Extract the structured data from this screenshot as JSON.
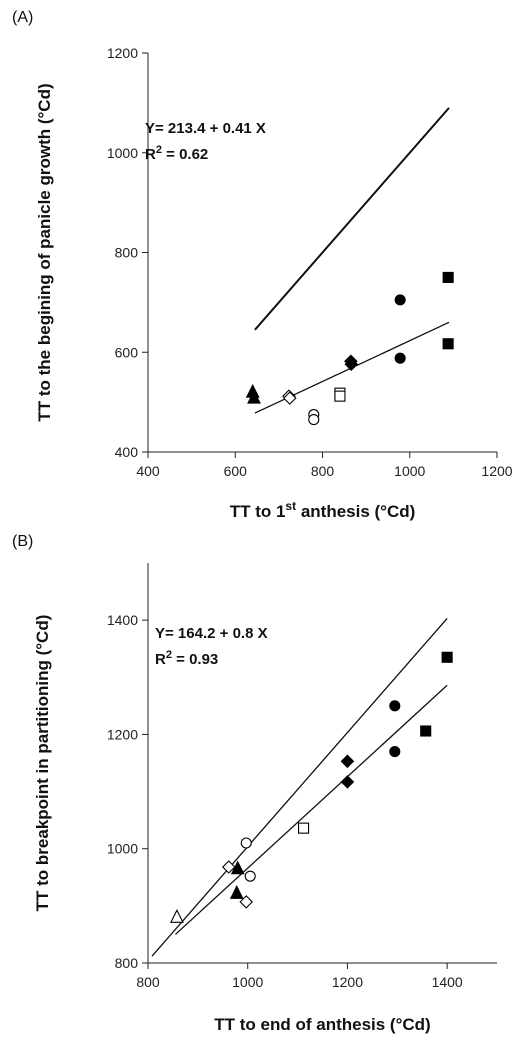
{
  "chart_data": [
    {
      "type": "scatter",
      "panel_label": "(A)",
      "xlabel": "TT to  1st anthesis (°Cd)",
      "xlabel_parts": {
        "pre": "TT to  1",
        "sup": "st",
        "post": " anthesis (°Cd)"
      },
      "ylabel": "TT to the begining of panicle growth (°Cd)",
      "xlim": [
        400,
        1200
      ],
      "ylim": [
        400,
        1200
      ],
      "xticks": [
        400,
        600,
        800,
        1000,
        1200
      ],
      "yticks": [
        400,
        600,
        800,
        1000,
        1200
      ],
      "grid": false,
      "equation": {
        "line1": "Y= 213.4 + 0.41 X",
        "line2_main": "R",
        "line2_sup": "2",
        "line2_rest": " = 0.62"
      },
      "lines": [
        {
          "style": "thick",
          "x": [
            645,
            1090
          ],
          "y": [
            645,
            1090
          ]
        },
        {
          "style": "thin",
          "x": [
            645,
            1090
          ],
          "y": [
            478,
            660
          ]
        }
      ],
      "series": [
        {
          "marker": "triangle",
          "filled": true,
          "points": [
            [
              640,
              520
            ],
            [
              643,
              508
            ]
          ]
        },
        {
          "marker": "diamond",
          "filled": false,
          "points": [
            [
              723,
              512
            ],
            [
              725,
              508
            ]
          ]
        },
        {
          "marker": "circle",
          "filled": false,
          "points": [
            [
              780,
              475
            ],
            [
              780,
              465
            ]
          ]
        },
        {
          "marker": "square",
          "filled": false,
          "points": [
            [
              840,
              518
            ],
            [
              840,
              512
            ]
          ]
        },
        {
          "marker": "diamond",
          "filled": true,
          "points": [
            [
              865,
              582
            ],
            [
              866,
              576
            ]
          ]
        },
        {
          "marker": "circle",
          "filled": true,
          "points": [
            [
              978,
              705
            ],
            [
              978,
              588
            ]
          ]
        },
        {
          "marker": "square",
          "filled": true,
          "points": [
            [
              1088,
              750
            ],
            [
              1088,
              617
            ]
          ]
        }
      ]
    },
    {
      "type": "scatter",
      "panel_label": "(B)",
      "xlabel": "TT to end of anthesis (°Cd)",
      "ylabel": "TT to breakpoint in partitioning (°Cd)",
      "xlim": [
        800,
        1500
      ],
      "ylim": [
        800,
        1500
      ],
      "xticks": [
        800,
        1000,
        1200,
        1400
      ],
      "yticks": [
        800,
        1000,
        1200,
        1400
      ],
      "grid": false,
      "equation": {
        "line1": "Y= 164.2 + 0.8 X",
        "line2_main": "R",
        "line2_sup": "2",
        "line2_rest": " = 0.93"
      },
      "lines": [
        {
          "style": "thin",
          "x": [
            808,
            1400
          ],
          "y": [
            812,
            1403
          ]
        },
        {
          "style": "thin",
          "x": [
            855,
            1400
          ],
          "y": [
            850,
            1286
          ]
        }
      ],
      "series": [
        {
          "marker": "triangle",
          "filled": false,
          "points": [
            [
              858,
              880
            ]
          ]
        },
        {
          "marker": "diamond",
          "filled": false,
          "points": [
            [
              962,
              968
            ],
            [
              997,
              907
            ]
          ]
        },
        {
          "marker": "triangle",
          "filled": true,
          "points": [
            [
              980,
              965
            ],
            [
              978,
              922
            ]
          ]
        },
        {
          "marker": "circle",
          "filled": false,
          "points": [
            [
              997,
              1010
            ],
            [
              1005,
              952
            ]
          ]
        },
        {
          "marker": "square",
          "filled": false,
          "points": [
            [
              1112,
              1036
            ]
          ]
        },
        {
          "marker": "diamond",
          "filled": true,
          "points": [
            [
              1200,
              1153
            ],
            [
              1200,
              1117
            ]
          ]
        },
        {
          "marker": "circle",
          "filled": true,
          "points": [
            [
              1295,
              1250
            ],
            [
              1295,
              1170
            ]
          ]
        },
        {
          "marker": "square",
          "filled": true,
          "points": [
            [
              1357,
              1206
            ],
            [
              1400,
              1335
            ]
          ]
        }
      ]
    }
  ]
}
